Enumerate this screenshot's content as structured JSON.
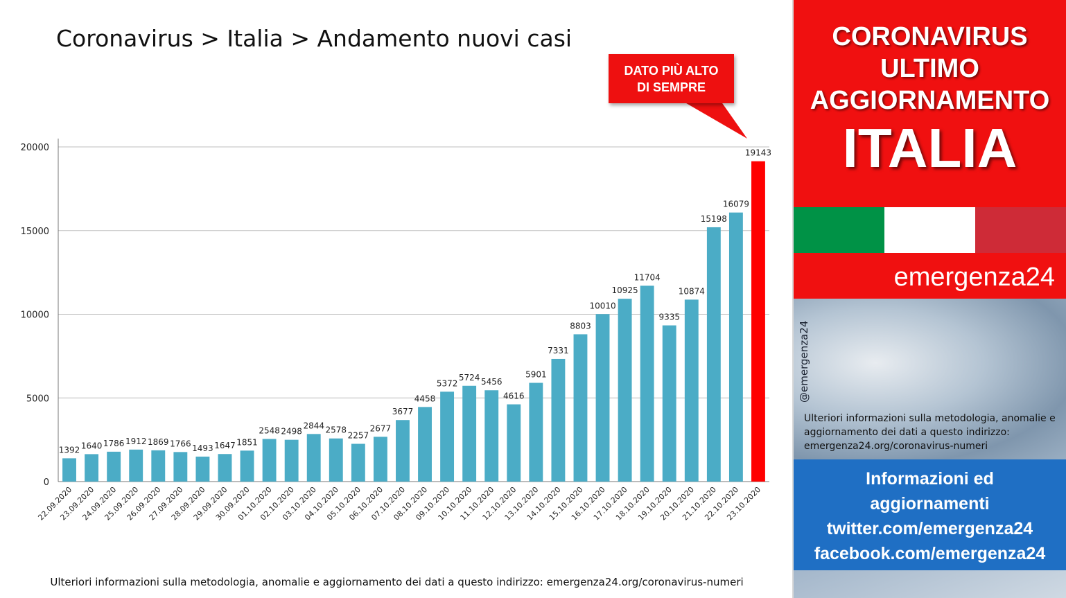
{
  "header": {
    "title": "Coronavirus > Italia > Andamento nuovi casi"
  },
  "callout": {
    "line1": "DATO PIÙ ALTO",
    "line2": "DI SEMPRE"
  },
  "footer": {
    "note": "Ulteriori informazioni sulla metodologia, anomalie e aggiornamento dei dati a questo indirizzo: emergenza24.org/coronavirus-numeri"
  },
  "sidebar": {
    "headline": [
      "CORONAVIRUS",
      "ULTIMO",
      "AGGIORNAMENTO"
    ],
    "country": "ITALIA",
    "flag_colors": [
      "#009246",
      "#ffffff",
      "#ce2b37"
    ],
    "brand": "emergenza24",
    "handle": "@emergenza24",
    "info_text": "Ulteriori informazioni sulla metodologia, anomalie e aggiornamento dei dati a questo indirizzo: emergenza24.org/coronavirus-numeri",
    "links": [
      "Informazioni ed",
      "aggiornamenti",
      "twitter.com/emergenza24",
      "facebook.com/emergenza24"
    ]
  },
  "colors": {
    "bar": "#4bacc6",
    "highlight_bar": "#ff0000",
    "accent_red": "#f01010",
    "blue": "#1f6fc4"
  },
  "chart_data": {
    "type": "bar",
    "title": "",
    "xlabel": "",
    "ylabel": "",
    "ylim": [
      0,
      20000
    ],
    "yticks": [
      0,
      5000,
      10000,
      15000,
      20000
    ],
    "grid": true,
    "highlight_index": 31,
    "categories": [
      "22.09.2020",
      "23.09.2020",
      "24.09.2020",
      "25.09.2020",
      "26.09.2020",
      "27.09.2020",
      "28.09.2020",
      "29.09.2020",
      "30.09.2020",
      "01.10.2020",
      "02.10.2020",
      "03.10.2020",
      "04.10.2020",
      "05.10.2020",
      "06.10.2020",
      "07.10.2020",
      "08.10.2020",
      "09.10.2020",
      "10.10.2020",
      "11.10.2020",
      "12.10.2020",
      "13.10.2020",
      "14.10.2020",
      "15.10.2020",
      "16.10.2020",
      "17.10.2020",
      "18.10.2020",
      "19.10.2020",
      "20.10.2020",
      "21.10.2020",
      "22.10.2020",
      "23.10.2020"
    ],
    "values": [
      1392,
      1640,
      1786,
      1912,
      1869,
      1766,
      1493,
      1647,
      1851,
      2548,
      2498,
      2844,
      2578,
      2257,
      2677,
      3677,
      4458,
      5372,
      5724,
      5456,
      4616,
      5901,
      7331,
      8803,
      10010,
      10925,
      11704,
      9335,
      10874,
      15198,
      16079,
      19143
    ]
  }
}
